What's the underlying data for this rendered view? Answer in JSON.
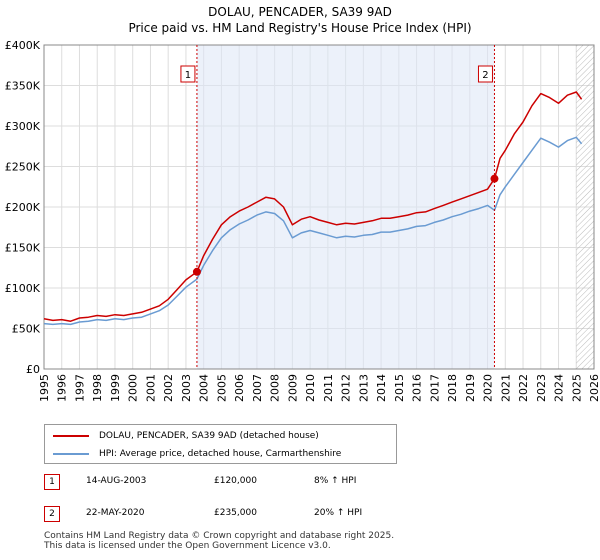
{
  "chart_data": {
    "type": "line",
    "title": "DOLAU, PENCADER, SA39 9AD",
    "subtitle": "Price paid vs. HM Land Registry's House Price Index (HPI)",
    "xlabel": "",
    "ylabel": "",
    "xlim": [
      1995,
      2026
    ],
    "ylim": [
      0,
      400000
    ],
    "grid": true,
    "x_ticks": [
      "1995",
      "1996",
      "1997",
      "1998",
      "1999",
      "2000",
      "2001",
      "2002",
      "2003",
      "2004",
      "2005",
      "2006",
      "2007",
      "2008",
      "2009",
      "2010",
      "2011",
      "2012",
      "2013",
      "2014",
      "2015",
      "2016",
      "2017",
      "2018",
      "2019",
      "2020",
      "2021",
      "2022",
      "2023",
      "2024",
      "2025",
      "2026"
    ],
    "y_ticks": [
      {
        "value": 0,
        "label": "£0"
      },
      {
        "value": 50000,
        "label": "£50K"
      },
      {
        "value": 100000,
        "label": "£100K"
      },
      {
        "value": 150000,
        "label": "£150K"
      },
      {
        "value": 200000,
        "label": "£200K"
      },
      {
        "value": 250000,
        "label": "£250K"
      },
      {
        "value": 300000,
        "label": "£300K"
      },
      {
        "value": 350000,
        "label": "£350K"
      },
      {
        "value": 400000,
        "label": "£400K"
      }
    ],
    "shaded_period": [
      2003.62,
      2020.39
    ],
    "future_hatch_from": 2025.0,
    "series": [
      {
        "name": "DOLAU, PENCADER, SA39 9AD (detached house)",
        "color": "#cc0000",
        "x": [
          1995.0,
          1995.5,
          1996.0,
          1996.5,
          1997.0,
          1997.5,
          1998.0,
          1998.5,
          1999.0,
          1999.5,
          2000.0,
          2000.5,
          2001.0,
          2001.5,
          2002.0,
          2002.5,
          2003.0,
          2003.62,
          2004.0,
          2004.5,
          2005.0,
          2005.5,
          2006.0,
          2006.5,
          2007.0,
          2007.5,
          2008.0,
          2008.5,
          2009.0,
          2009.5,
          2010.0,
          2010.5,
          2011.0,
          2011.5,
          2012.0,
          2012.5,
          2013.0,
          2013.5,
          2014.0,
          2014.5,
          2015.0,
          2015.5,
          2016.0,
          2016.5,
          2017.0,
          2017.5,
          2018.0,
          2018.5,
          2019.0,
          2019.5,
          2020.0,
          2020.39,
          2020.7,
          2021.0,
          2021.5,
          2022.0,
          2022.5,
          2023.0,
          2023.5,
          2024.0,
          2024.5,
          2025.0,
          2025.3
        ],
        "y": [
          62000,
          60000,
          61000,
          59000,
          63000,
          64000,
          66000,
          65000,
          67000,
          66000,
          68000,
          70000,
          74000,
          78000,
          86000,
          98000,
          110000,
          120000,
          140000,
          160000,
          178000,
          188000,
          195000,
          200000,
          206000,
          212000,
          210000,
          200000,
          178000,
          185000,
          188000,
          184000,
          181000,
          178000,
          180000,
          179000,
          181000,
          183000,
          186000,
          186000,
          188000,
          190000,
          193000,
          194000,
          198000,
          202000,
          206000,
          210000,
          214000,
          218000,
          222000,
          235000,
          260000,
          270000,
          290000,
          305000,
          325000,
          340000,
          335000,
          328000,
          338000,
          342000,
          333000
        ]
      },
      {
        "name": "HPI: Average price, detached house, Carmarthenshire",
        "color": "#6a9bd2",
        "x": [
          1995.0,
          1995.5,
          1996.0,
          1996.5,
          1997.0,
          1997.5,
          1998.0,
          1998.5,
          1999.0,
          1999.5,
          2000.0,
          2000.5,
          2001.0,
          2001.5,
          2002.0,
          2002.5,
          2003.0,
          2003.62,
          2004.0,
          2004.5,
          2005.0,
          2005.5,
          2006.0,
          2006.5,
          2007.0,
          2007.5,
          2008.0,
          2008.5,
          2009.0,
          2009.5,
          2010.0,
          2010.5,
          2011.0,
          2011.5,
          2012.0,
          2012.5,
          2013.0,
          2013.5,
          2014.0,
          2014.5,
          2015.0,
          2015.5,
          2016.0,
          2016.5,
          2017.0,
          2017.5,
          2018.0,
          2018.5,
          2019.0,
          2019.5,
          2020.0,
          2020.39,
          2020.7,
          2021.0,
          2021.5,
          2022.0,
          2022.5,
          2023.0,
          2023.5,
          2024.0,
          2024.5,
          2025.0,
          2025.3
        ],
        "y": [
          56000,
          55000,
          56000,
          55000,
          58000,
          59000,
          61000,
          60000,
          62000,
          61000,
          63000,
          64000,
          68000,
          72000,
          79000,
          90000,
          101000,
          111000,
          128000,
          146000,
          162000,
          172000,
          179000,
          184000,
          190000,
          194000,
          192000,
          183000,
          162000,
          168000,
          171000,
          168000,
          165000,
          162000,
          164000,
          163000,
          165000,
          166000,
          169000,
          169000,
          171000,
          173000,
          176000,
          177000,
          181000,
          184000,
          188000,
          191000,
          195000,
          198000,
          202000,
          196000,
          215000,
          225000,
          240000,
          255000,
          270000,
          285000,
          280000,
          274000,
          282000,
          286000,
          278000
        ]
      }
    ],
    "sales": [
      {
        "label": "1",
        "x": 2003.62,
        "y": 120000,
        "date": "14-AUG-2003",
        "price": "£120,000",
        "hpi": "8% ↑ HPI"
      },
      {
        "label": "2",
        "x": 2020.39,
        "y": 235000,
        "date": "22-MAY-2020",
        "price": "£235,000",
        "hpi": "20% ↑ HPI"
      }
    ]
  },
  "footer": {
    "line1": "Contains HM Land Registry data © Crown copyright and database right 2025.",
    "line2": "This data is licensed under the Open Government Licence v3.0."
  }
}
